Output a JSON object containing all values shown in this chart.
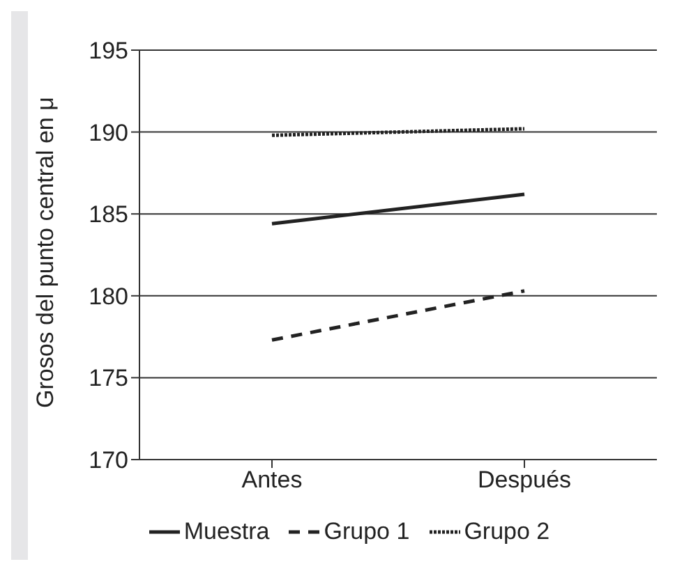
{
  "chart_data": {
    "type": "line",
    "ylabel": "Grosos del punto central en μ",
    "categories": [
      "Antes",
      "Después"
    ],
    "ylim": [
      170,
      195
    ],
    "yticks": [
      170,
      175,
      180,
      185,
      190,
      195
    ],
    "grid": "y",
    "legend": "bottom",
    "marker": "none",
    "series": [
      {
        "name": "Muestra",
        "color": "#222222",
        "values": [
          184.4,
          186.2
        ],
        "line_style": "solid"
      },
      {
        "name": "Grupo 1",
        "color": "#222222",
        "values": [
          177.3,
          180.3
        ],
        "line_style": "dashed"
      },
      {
        "name": "Grupo 2",
        "color": "#222222",
        "values": [
          189.8,
          190.2
        ],
        "line_style": "dotted"
      }
    ]
  }
}
